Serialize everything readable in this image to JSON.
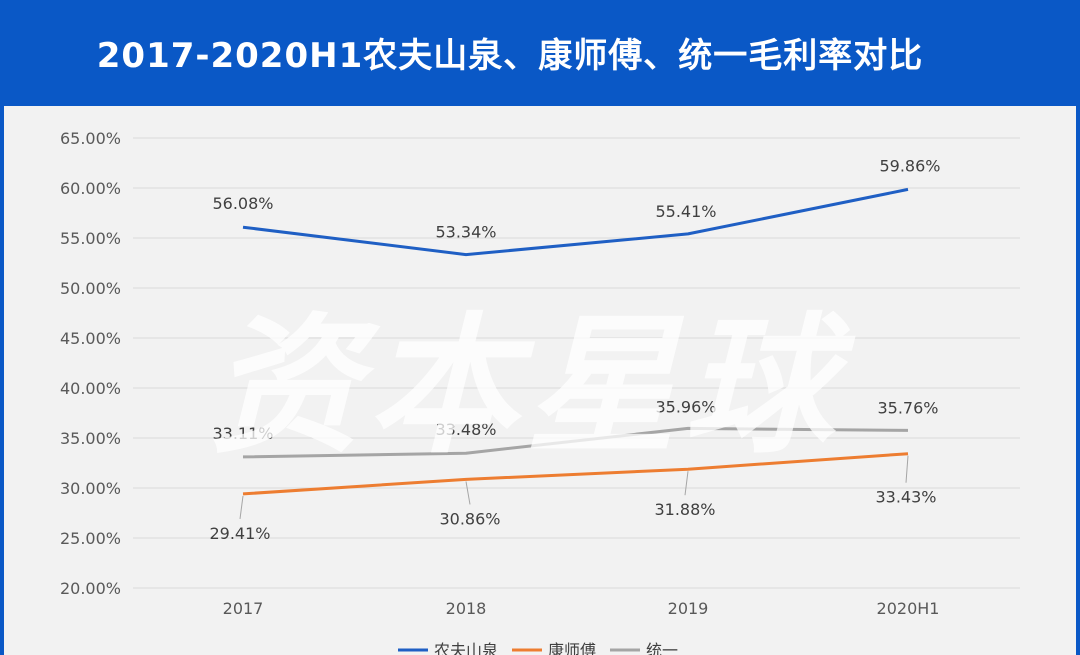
{
  "title": "2017-2020H1农夫山泉、康师傅、统一毛利率对比",
  "watermark": "资本星球",
  "chart_data": {
    "type": "line",
    "categories": [
      "2017",
      "2018",
      "2019",
      "2020H1"
    ],
    "ylim": [
      20,
      65
    ],
    "yticks": [
      "65.00%",
      "60.00%",
      "55.00%",
      "50.00%",
      "45.00%",
      "40.00%",
      "35.00%",
      "30.00%",
      "25.00%",
      "20.00%"
    ],
    "ytick_values": [
      65,
      60,
      55,
      50,
      45,
      40,
      35,
      30,
      25,
      20
    ],
    "grid": true,
    "legend_position": "bottom",
    "series": [
      {
        "name": "农夫山泉",
        "color": "#1f5fc4",
        "values": [
          56.08,
          53.34,
          55.41,
          59.86
        ],
        "labels": [
          "56.08%",
          "53.34%",
          "55.41%",
          "59.86%"
        ]
      },
      {
        "name": "康师傅",
        "color": "#ed7d31",
        "values": [
          29.41,
          30.86,
          31.88,
          33.43
        ],
        "labels": [
          "29.41%",
          "30.86%",
          "31.88%",
          "33.43%"
        ]
      },
      {
        "name": "统一",
        "color": "#a5a5a5",
        "values": [
          33.11,
          33.48,
          35.96,
          35.76
        ],
        "labels": [
          "33.11%",
          "33.48%",
          "35.96%",
          "35.76%"
        ]
      }
    ]
  }
}
